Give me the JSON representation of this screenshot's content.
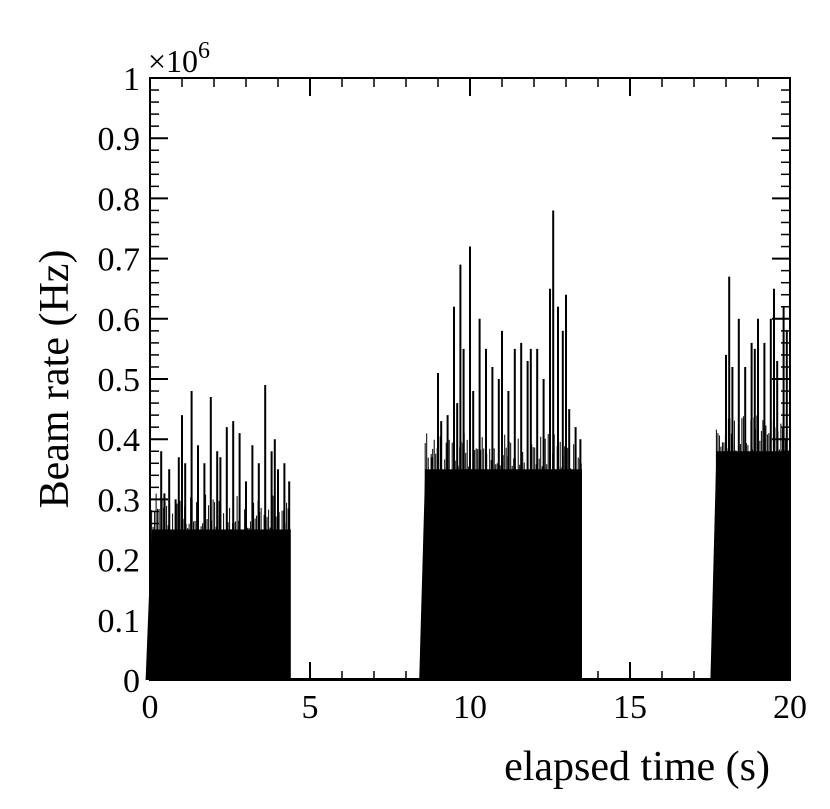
{
  "chart_data": {
    "type": "bar",
    "xlabel": "elapsed time (s)",
    "ylabel": "Beam rate (Hz)",
    "y_multiplier": "×10",
    "y_multiplier_exp": "6",
    "xlim": [
      0,
      20
    ],
    "ylim": [
      0,
      1
    ],
    "x_ticks": [
      0,
      5,
      10,
      15,
      20
    ],
    "x_tick_labels": [
      "0",
      "5",
      "10",
      "15",
      "20"
    ],
    "y_ticks": [
      0,
      0.1,
      0.2,
      0.3,
      0.4,
      0.5,
      0.6,
      0.7,
      0.8,
      0.9,
      1
    ],
    "y_tick_labels": [
      "0",
      "0.1",
      "0.2",
      "0.3",
      "0.4",
      "0.5",
      "0.6",
      "0.7",
      "0.8",
      "0.9",
      "1"
    ],
    "grid": false,
    "bar_color": "#000000",
    "series": [
      {
        "values_description_unit": "rate ×10^6 Hz",
        "bursts": [
          {
            "start": 0.05,
            "end": 4.4,
            "base": 0.25,
            "peaks": [
              [
                0.1,
                0.23
              ],
              [
                0.2,
                0.22
              ],
              [
                0.35,
                0.38
              ],
              [
                0.45,
                0.31
              ],
              [
                0.6,
                0.35
              ],
              [
                0.8,
                0.3
              ],
              [
                0.9,
                0.37
              ],
              [
                1.0,
                0.44
              ],
              [
                1.1,
                0.36
              ],
              [
                1.3,
                0.48
              ],
              [
                1.5,
                0.39
              ],
              [
                1.7,
                0.36
              ],
              [
                1.9,
                0.47
              ],
              [
                2.1,
                0.38
              ],
              [
                2.2,
                0.37
              ],
              [
                2.4,
                0.42
              ],
              [
                2.6,
                0.43
              ],
              [
                2.8,
                0.41
              ],
              [
                3.0,
                0.33
              ],
              [
                3.2,
                0.39
              ],
              [
                3.4,
                0.36
              ],
              [
                3.6,
                0.49
              ],
              [
                3.8,
                0.38
              ],
              [
                3.9,
                0.4
              ],
              [
                4.0,
                0.35
              ],
              [
                4.2,
                0.36
              ],
              [
                4.35,
                0.33
              ]
            ]
          },
          {
            "start": 8.6,
            "end": 13.5,
            "base": 0.35,
            "peaks": [
              [
                8.8,
                0.37
              ],
              [
                9.0,
                0.51
              ],
              [
                9.1,
                0.43
              ],
              [
                9.3,
                0.44
              ],
              [
                9.5,
                0.62
              ],
              [
                9.6,
                0.46
              ],
              [
                9.7,
                0.69
              ],
              [
                9.8,
                0.55
              ],
              [
                10.0,
                0.72
              ],
              [
                10.1,
                0.48
              ],
              [
                10.3,
                0.6
              ],
              [
                10.5,
                0.55
              ],
              [
                10.7,
                0.52
              ],
              [
                10.9,
                0.5
              ],
              [
                11.0,
                0.58
              ],
              [
                11.2,
                0.48
              ],
              [
                11.4,
                0.55
              ],
              [
                11.6,
                0.56
              ],
              [
                11.8,
                0.53
              ],
              [
                11.9,
                0.55
              ],
              [
                12.1,
                0.55
              ],
              [
                12.3,
                0.5
              ],
              [
                12.5,
                0.65
              ],
              [
                12.6,
                0.78
              ],
              [
                12.75,
                0.62
              ],
              [
                12.9,
                0.58
              ],
              [
                13.0,
                0.64
              ],
              [
                13.1,
                0.45
              ],
              [
                13.3,
                0.42
              ],
              [
                13.45,
                0.4
              ]
            ]
          },
          {
            "start": 17.7,
            "end": 20,
            "base": 0.38,
            "peaks": [
              [
                17.8,
                0.3
              ],
              [
                18.0,
                0.54
              ],
              [
                18.1,
                0.67
              ],
              [
                18.2,
                0.52
              ],
              [
                18.4,
                0.6
              ],
              [
                18.6,
                0.52
              ],
              [
                18.8,
                0.56
              ],
              [
                18.9,
                0.55
              ],
              [
                19.0,
                0.6
              ],
              [
                19.2,
                0.56
              ],
              [
                19.4,
                0.6
              ],
              [
                19.5,
                0.65
              ],
              [
                19.6,
                0.53
              ],
              [
                19.8,
                0.62
              ],
              [
                19.9,
                0.58
              ]
            ]
          }
        ]
      }
    ]
  }
}
